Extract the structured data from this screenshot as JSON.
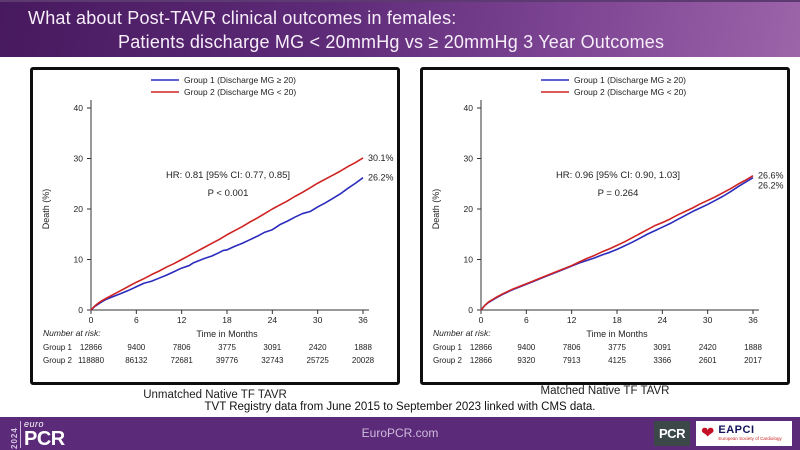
{
  "header": {
    "title_line1": "What about Post-TAVR clinical outcomes in  females:",
    "title_line2": "Patients discharge MG < 20mmHg vs ≥ 20mmHg 3 Year Outcomes"
  },
  "captions": {
    "left": "Unmatched Native TF TAVR",
    "right": "Matched Native TF TAVR",
    "source_note": "TVT Registry data from June 2015 to September 2023 linked with CMS data."
  },
  "footer": {
    "logo_year": "2024",
    "logo_euro": "euro",
    "logo_pcr": "PCR",
    "site": "EuroPCR.com",
    "pcr_badge": "PCR",
    "eapci_name": "EAPCI",
    "eapci_sub": "European Society of Cardiology"
  },
  "colors": {
    "group1_blue": "#2b2bbd",
    "group2_red": "#cf2222",
    "header_purple_dark": "#47195e",
    "header_purple_light": "#9c64a9",
    "footer_purple": "#5b2a78",
    "axis": "#333333"
  },
  "chart_data": [
    {
      "type": "line",
      "title": "Unmatched Native TF TAVR",
      "xlabel": "Time in Months",
      "ylabel": "Death (%)",
      "xlim": [
        0,
        36
      ],
      "ylim": [
        0,
        40
      ],
      "xticks": [
        0,
        6,
        12,
        18,
        24,
        30,
        36
      ],
      "yticks": [
        0,
        10,
        20,
        30,
        40
      ],
      "grid": false,
      "legend_position": "top",
      "annotation": [
        "HR: 0.81 [95% CI: 0.77, 0.85]",
        "P < 0.001"
      ],
      "series": [
        {
          "name": "Group 1 (Discharge MG ≥ 20)",
          "color": "#2b2bbd",
          "end_label": "26.2%",
          "points": [
            [
              0,
              0
            ],
            [
              0.5,
              0.7
            ],
            [
              1,
              1.2
            ],
            [
              1.5,
              1.7
            ],
            [
              2,
              2.1
            ],
            [
              3,
              2.7
            ],
            [
              4,
              3.3
            ],
            [
              5,
              3.9
            ],
            [
              6,
              4.6
            ],
            [
              7,
              5.3
            ],
            [
              7.5,
              5.5
            ],
            [
              8,
              5.7
            ],
            [
              9,
              6.3
            ],
            [
              10,
              6.9
            ],
            [
              11,
              7.6
            ],
            [
              12,
              8.3
            ],
            [
              13,
              8.8
            ],
            [
              13.5,
              9.3
            ],
            [
              14,
              9.6
            ],
            [
              15,
              10.2
            ],
            [
              16,
              10.7
            ],
            [
              17,
              11.4
            ],
            [
              17.5,
              11.8
            ],
            [
              18,
              11.9
            ],
            [
              19,
              12.6
            ],
            [
              20,
              13.2
            ],
            [
              21,
              13.9
            ],
            [
              22,
              14.6
            ],
            [
              23,
              15.4
            ],
            [
              24,
              15.9
            ],
            [
              25,
              16.9
            ],
            [
              26,
              17.6
            ],
            [
              27,
              18.4
            ],
            [
              28,
              19.1
            ],
            [
              29,
              19.5
            ],
            [
              30,
              20.4
            ],
            [
              31,
              21.2
            ],
            [
              32,
              22.1
            ],
            [
              33,
              23.0
            ],
            [
              34,
              24.1
            ],
            [
              35,
              25.1
            ],
            [
              36,
              26.2
            ]
          ]
        },
        {
          "name": "Group 2 (Discharge MG < 20)",
          "color": "#cf2222",
          "end_label": "30.1%",
          "points": [
            [
              0,
              0
            ],
            [
              0.5,
              0.8
            ],
            [
              1,
              1.4
            ],
            [
              1.5,
              1.9
            ],
            [
              2,
              2.3
            ],
            [
              3,
              3.1
            ],
            [
              4,
              3.9
            ],
            [
              5,
              4.7
            ],
            [
              6,
              5.5
            ],
            [
              7,
              6.2
            ],
            [
              8,
              7.0
            ],
            [
              9,
              7.7
            ],
            [
              10,
              8.5
            ],
            [
              11,
              9.2
            ],
            [
              12,
              10.0
            ],
            [
              13,
              10.8
            ],
            [
              14,
              11.6
            ],
            [
              15,
              12.4
            ],
            [
              16,
              13.2
            ],
            [
              17,
              14.0
            ],
            [
              18,
              14.9
            ],
            [
              19,
              15.7
            ],
            [
              20,
              16.5
            ],
            [
              21,
              17.4
            ],
            [
              22,
              18.2
            ],
            [
              23,
              19.1
            ],
            [
              24,
              20.0
            ],
            [
              25,
              20.8
            ],
            [
              26,
              21.6
            ],
            [
              27,
              22.5
            ],
            [
              28,
              23.3
            ],
            [
              29,
              24.2
            ],
            [
              30,
              25.1
            ],
            [
              31,
              25.9
            ],
            [
              32,
              26.7
            ],
            [
              33,
              27.5
            ],
            [
              34,
              28.4
            ],
            [
              35,
              29.2
            ],
            [
              36,
              30.1
            ]
          ]
        }
      ],
      "number_at_risk": {
        "label": "Number at risk:",
        "rows": [
          {
            "name": "Group 1",
            "values": [
              "12866",
              "9400",
              "7806",
              "3775",
              "3091",
              "2420",
              "1888"
            ]
          },
          {
            "name": "Group 2",
            "values": [
              "118880",
              "86132",
              "72681",
              "39776",
              "32743",
              "25725",
              "20028"
            ]
          }
        ]
      }
    },
    {
      "type": "line",
      "title": "Matched Native TF TAVR",
      "xlabel": "Time in Months",
      "ylabel": "Death (%)",
      "xlim": [
        0,
        36
      ],
      "ylim": [
        0,
        40
      ],
      "xticks": [
        0,
        6,
        12,
        18,
        24,
        30,
        36
      ],
      "yticks": [
        0,
        10,
        20,
        30,
        40
      ],
      "grid": false,
      "legend_position": "top",
      "annotation": [
        "HR: 0.96 [95% CI: 0.90, 1.03]",
        "P = 0.264"
      ],
      "series": [
        {
          "name": "Group 1 (Discharge MG ≥ 20)",
          "color": "#2b2bbd",
          "end_label": "26.2%",
          "points": [
            [
              0,
              0
            ],
            [
              0.5,
              0.9
            ],
            [
              1,
              1.5
            ],
            [
              2,
              2.4
            ],
            [
              3,
              3.2
            ],
            [
              4,
              3.9
            ],
            [
              5,
              4.5
            ],
            [
              6,
              5.1
            ],
            [
              7,
              5.7
            ],
            [
              8,
              6.3
            ],
            [
              9,
              6.9
            ],
            [
              10,
              7.5
            ],
            [
              11,
              8.1
            ],
            [
              12,
              8.7
            ],
            [
              13,
              9.3
            ],
            [
              14,
              9.8
            ],
            [
              15,
              10.3
            ],
            [
              16,
              10.9
            ],
            [
              17,
              11.4
            ],
            [
              18,
              12.0
            ],
            [
              19,
              12.7
            ],
            [
              20,
              13.4
            ],
            [
              21,
              14.2
            ],
            [
              22,
              15.0
            ],
            [
              23,
              15.7
            ],
            [
              24,
              16.4
            ],
            [
              25,
              17.1
            ],
            [
              26,
              17.9
            ],
            [
              27,
              18.7
            ],
            [
              28,
              19.5
            ],
            [
              29,
              20.2
            ],
            [
              30,
              20.9
            ],
            [
              31,
              21.7
            ],
            [
              32,
              22.5
            ],
            [
              33,
              23.4
            ],
            [
              34,
              24.4
            ],
            [
              35,
              25.3
            ],
            [
              36,
              26.2
            ]
          ]
        },
        {
          "name": "Group 2 (Discharge MG < 20)",
          "color": "#cf2222",
          "end_label": "26.6%",
          "points": [
            [
              0,
              0
            ],
            [
              0.5,
              0.9
            ],
            [
              1,
              1.6
            ],
            [
              2,
              2.5
            ],
            [
              3,
              3.3
            ],
            [
              4,
              4.0
            ],
            [
              5,
              4.6
            ],
            [
              6,
              5.2
            ],
            [
              7,
              5.8
            ],
            [
              8,
              6.4
            ],
            [
              9,
              7.0
            ],
            [
              10,
              7.6
            ],
            [
              11,
              8.2
            ],
            [
              12,
              8.8
            ],
            [
              13,
              9.5
            ],
            [
              14,
              10.2
            ],
            [
              15,
              10.8
            ],
            [
              16,
              11.5
            ],
            [
              17,
              12.1
            ],
            [
              18,
              12.8
            ],
            [
              19,
              13.5
            ],
            [
              20,
              14.3
            ],
            [
              21,
              15.1
            ],
            [
              22,
              15.9
            ],
            [
              23,
              16.7
            ],
            [
              24,
              17.3
            ],
            [
              25,
              18.0
            ],
            [
              26,
              18.8
            ],
            [
              27,
              19.5
            ],
            [
              28,
              20.2
            ],
            [
              29,
              21.0
            ],
            [
              30,
              21.7
            ],
            [
              31,
              22.4
            ],
            [
              32,
              23.2
            ],
            [
              33,
              24.0
            ],
            [
              34,
              24.9
            ],
            [
              35,
              25.7
            ],
            [
              36,
              26.6
            ]
          ]
        }
      ],
      "number_at_risk": {
        "label": "Number at risk:",
        "rows": [
          {
            "name": "Group 1",
            "values": [
              "12866",
              "9400",
              "7806",
              "3775",
              "3091",
              "2420",
              "1888"
            ]
          },
          {
            "name": "Group 2",
            "values": [
              "12866",
              "9320",
              "7913",
              "4125",
              "3366",
              "2601",
              "2017"
            ]
          }
        ]
      }
    }
  ]
}
